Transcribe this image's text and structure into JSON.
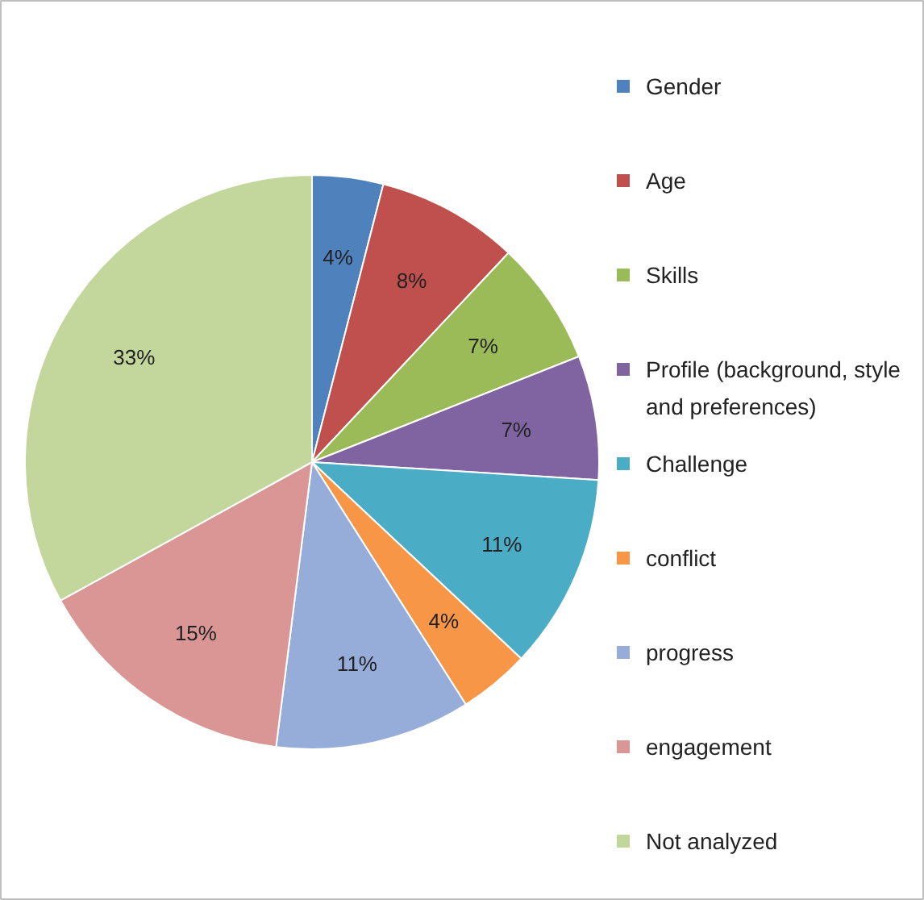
{
  "chart_data": {
    "type": "pie",
    "categories": [
      "Gender",
      "Age",
      "Skills",
      "Profile (background, style and preferences)",
      "Challenge",
      "conflict",
      "progress",
      "engagement",
      "Not analyzed"
    ],
    "values": [
      4,
      8,
      7,
      7,
      11,
      4,
      11,
      15,
      33
    ],
    "colors": [
      "#4f81bd",
      "#c0504d",
      "#9bbb59",
      "#8064a2",
      "#4bacc6",
      "#f79646",
      "#95add8",
      "#d99694",
      "#c3d69b"
    ],
    "value_labels": [
      "4%",
      "8%",
      "7%",
      "7%",
      "11%",
      "4%",
      "11%",
      "15%",
      "33%"
    ],
    "legend": "right"
  }
}
